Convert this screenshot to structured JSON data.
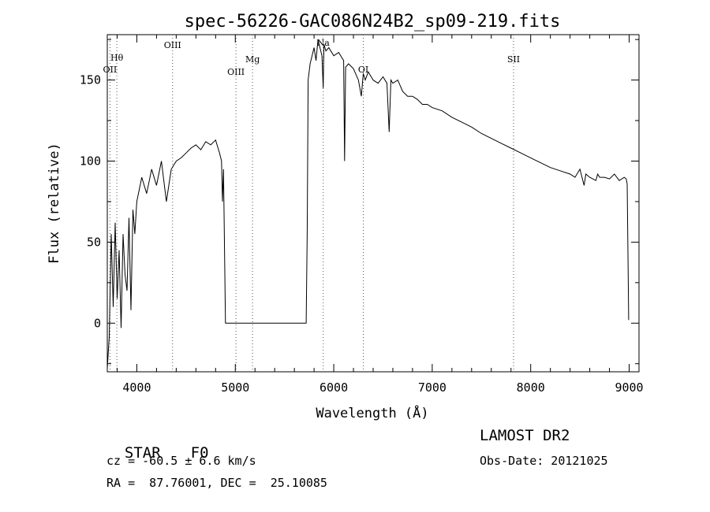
{
  "chart_data": {
    "type": "line",
    "title": "spec-56226-GAC086N24B2_sp09-219.fits",
    "xlabel": "Wavelength (Å)",
    "ylabel": "Flux (relative)",
    "xlim": [
      3700,
      9100
    ],
    "ylim": [
      -30,
      178
    ],
    "xticks": [
      4000,
      5000,
      6000,
      7000,
      8000,
      9000
    ],
    "yticks": [
      0,
      50,
      100,
      150
    ],
    "grid": false,
    "spectral_lines": [
      {
        "name": "OII",
        "wavelength": 3727
      },
      {
        "name": "Hθ",
        "wavelength": 3797
      },
      {
        "name": "OIII",
        "wavelength": 4363
      },
      {
        "name": "OIII",
        "wavelength": 5007
      },
      {
        "name": "Mg",
        "wavelength": 5175
      },
      {
        "name": "Na",
        "wavelength": 5893
      },
      {
        "name": "OI",
        "wavelength": 6300
      },
      {
        "name": "SII",
        "wavelength": 7826
      }
    ],
    "series": [
      {
        "x": [
          3700,
          3720,
          3740,
          3760,
          3780,
          3800,
          3820,
          3840,
          3860,
          3880,
          3900,
          3920,
          3940,
          3960,
          3980,
          4000,
          4050,
          4100,
          4150,
          4200,
          4250,
          4300,
          4350,
          4400,
          4450,
          4500,
          4550,
          4600,
          4650,
          4700,
          4750,
          4800,
          4840,
          4860,
          4870,
          4880,
          4900,
          5000,
          5200,
          5400,
          5600,
          5720,
          5730,
          5740,
          5760,
          5780,
          5800,
          5820,
          5840,
          5860,
          5880,
          5893,
          5900,
          5920,
          5950,
          6000,
          6050,
          6100,
          6110,
          6120,
          6150,
          6200,
          6250,
          6280,
          6300,
          6320,
          6350,
          6400,
          6450,
          6500,
          6540,
          6563,
          6580,
          6600,
          6650,
          6700,
          6750,
          6800,
          6850,
          6900,
          6950,
          7000,
          7100,
          7200,
          7300,
          7400,
          7500,
          7600,
          7700,
          7800,
          7900,
          8000,
          8100,
          8200,
          8300,
          8400,
          8450,
          8500,
          8542,
          8560,
          8600,
          8662,
          8680,
          8700,
          8750,
          8800,
          8850,
          8900,
          8950,
          8970,
          8980,
          8990,
          8995
        ],
        "y": [
          -28,
          -8,
          55,
          10,
          62,
          15,
          45,
          -3,
          55,
          30,
          20,
          65,
          8,
          70,
          55,
          75,
          90,
          80,
          95,
          85,
          100,
          75,
          95,
          100,
          102,
          105,
          108,
          110,
          107,
          112,
          110,
          113,
          105,
          100,
          75,
          95,
          0,
          0,
          0,
          0,
          0,
          0,
          55,
          150,
          160,
          165,
          170,
          162,
          175,
          170,
          165,
          145,
          172,
          168,
          170,
          165,
          167,
          162,
          100,
          158,
          160,
          157,
          150,
          140,
          154,
          150,
          155,
          150,
          148,
          152,
          148,
          118,
          150,
          148,
          150,
          143,
          140,
          140,
          138,
          135,
          135,
          133,
          131,
          127,
          124,
          121,
          117,
          114,
          111,
          108,
          105,
          102,
          99,
          96,
          94,
          92,
          90,
          95,
          85,
          92,
          90,
          88,
          92,
          90,
          90,
          89,
          92,
          88,
          90,
          89,
          86,
          30,
          2
        ]
      }
    ]
  },
  "footer": {
    "object_class": "STAR",
    "subclass": "F0",
    "redshift": "cz = -60.5 ± 6.6 km/s",
    "coordinates": "RA =  87.76001, DEC =  25.10085",
    "survey": "LAMOST DR2",
    "obs_date": "Obs-Date: 20121025"
  }
}
